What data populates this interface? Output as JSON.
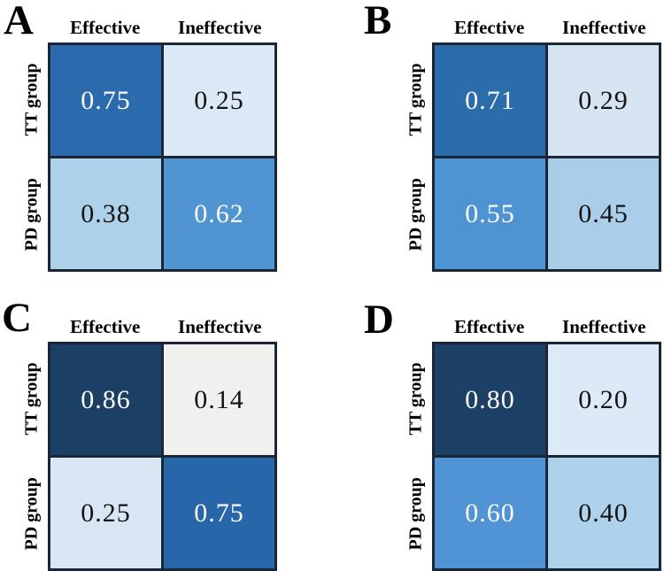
{
  "figure": {
    "panels": [
      {
        "letter": "A",
        "col_headers": [
          "Effective",
          "Ineffective"
        ],
        "row_labels": [
          "TT group",
          "PD group"
        ],
        "cells": [
          {
            "value": "0.75",
            "bg": "#2b6bad",
            "fg": "#fcfcfc"
          },
          {
            "value": "0.25",
            "bg": "#dbe8f5",
            "fg": "#141414"
          },
          {
            "value": "0.38",
            "bg": "#aed1ea",
            "fg": "#141414"
          },
          {
            "value": "0.62",
            "bg": "#5095d2",
            "fg": "#fcfcfc"
          }
        ]
      },
      {
        "letter": "B",
        "col_headers": [
          "Effective",
          "Ineffective"
        ],
        "row_labels": [
          "TT group",
          "PD group"
        ],
        "cells": [
          {
            "value": "0.71",
            "bg": "#2b6cab",
            "fg": "#fcfcfc"
          },
          {
            "value": "0.29",
            "bg": "#d7e5f3",
            "fg": "#141414"
          },
          {
            "value": "0.55",
            "bg": "#4e93d2",
            "fg": "#fcfcfc"
          },
          {
            "value": "0.45",
            "bg": "#aacee9",
            "fg": "#141414"
          }
        ]
      },
      {
        "letter": "C",
        "col_headers": [
          "Effective",
          "Ineffective"
        ],
        "row_labels": [
          "TT group",
          "PD group"
        ],
        "cells": [
          {
            "value": "0.86",
            "bg": "#1c4065",
            "fg": "#fcfcfc"
          },
          {
            "value": "0.14",
            "bg": "#f0f1ee",
            "fg": "#141414"
          },
          {
            "value": "0.25",
            "bg": "#d9e7f4",
            "fg": "#141414"
          },
          {
            "value": "0.75",
            "bg": "#2766a8",
            "fg": "#fcfcfc"
          }
        ]
      },
      {
        "letter": "D",
        "col_headers": [
          "Effective",
          "Ineffective"
        ],
        "row_labels": [
          "TT group",
          "PD group"
        ],
        "cells": [
          {
            "value": "0.80",
            "bg": "#1d4166",
            "fg": "#fcfcfc"
          },
          {
            "value": "0.20",
            "bg": "#dce9f6",
            "fg": "#141414"
          },
          {
            "value": "0.60",
            "bg": "#5094d5",
            "fg": "#fcfcfc"
          },
          {
            "value": "0.40",
            "bg": "#aed2ec",
            "fg": "#141414"
          }
        ]
      }
    ]
  },
  "colors": {
    "background": "#ffffff",
    "grid_line": "#1a2538"
  },
  "chart_data": [
    {
      "type": "heatmap",
      "title": "A",
      "x_labels": [
        "Effective",
        "Ineffective"
      ],
      "y_labels": [
        "TT group",
        "PD group"
      ],
      "values": [
        [
          0.75,
          0.25
        ],
        [
          0.38,
          0.62
        ]
      ],
      "value_range": [
        0,
        1
      ],
      "colormap": "Blues",
      "legend": "none",
      "grid": "off"
    },
    {
      "type": "heatmap",
      "title": "B",
      "x_labels": [
        "Effective",
        "Ineffective"
      ],
      "y_labels": [
        "TT group",
        "PD group"
      ],
      "values": [
        [
          0.71,
          0.29
        ],
        [
          0.55,
          0.45
        ]
      ],
      "value_range": [
        0,
        1
      ],
      "colormap": "Blues",
      "legend": "none",
      "grid": "off"
    },
    {
      "type": "heatmap",
      "title": "C",
      "x_labels": [
        "Effective",
        "Ineffective"
      ],
      "y_labels": [
        "TT group",
        "PD group"
      ],
      "values": [
        [
          0.86,
          0.14
        ],
        [
          0.25,
          0.75
        ]
      ],
      "value_range": [
        0,
        1
      ],
      "colormap": "Blues",
      "legend": "none",
      "grid": "off"
    },
    {
      "type": "heatmap",
      "title": "D",
      "x_labels": [
        "Effective",
        "Ineffective"
      ],
      "y_labels": [
        "TT group",
        "PD group"
      ],
      "values": [
        [
          0.8,
          0.2
        ],
        [
          0.6,
          0.4
        ]
      ],
      "value_range": [
        0,
        1
      ],
      "colormap": "Blues",
      "legend": "none",
      "grid": "off"
    }
  ]
}
